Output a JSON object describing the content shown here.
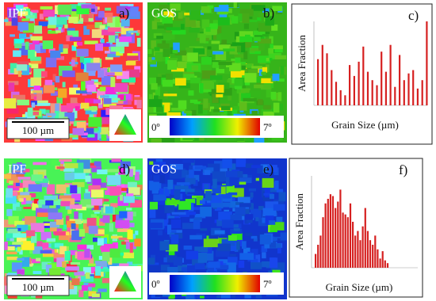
{
  "panels": [
    {
      "label": "a)",
      "map": "IPF",
      "scale_bar": "100 µm"
    },
    {
      "label": "b)",
      "map": "GOS",
      "colorbar": {
        "min": "0º",
        "max": "7º"
      }
    },
    {
      "label": "c)",
      "chart_data": {
        "type": "bar",
        "ylabel": "Area Fraction",
        "xlabel": "Grain Size (µm)",
        "color": "#d62020",
        "ylim": [
          0,
          100
        ],
        "values": [
          55,
          72,
          62,
          42,
          28,
          18,
          12,
          48,
          35,
          52,
          70,
          40,
          30,
          24,
          64,
          40,
          72,
          22,
          60,
          30,
          38,
          42,
          20,
          30,
          100
        ]
      }
    },
    {
      "label": "d)",
      "map": "IPF",
      "scale_bar": "100 µm"
    },
    {
      "label": "e)",
      "map": "GOS",
      "colorbar": {
        "min": "0º",
        "max": "7º"
      }
    },
    {
      "label": "f)",
      "chart_data": {
        "type": "bar",
        "ylabel": "Area Fraction",
        "xlabel": "Grain Size (µm)",
        "color": "#d62020",
        "ylim": [
          0,
          100
        ],
        "values": [
          15,
          25,
          35,
          55,
          70,
          75,
          80,
          78,
          65,
          72,
          85,
          60,
          58,
          55,
          70,
          50,
          35,
          40,
          30,
          45,
          65,
          40,
          30,
          25,
          35,
          20,
          10,
          18,
          8,
          5
        ]
      }
    }
  ]
}
